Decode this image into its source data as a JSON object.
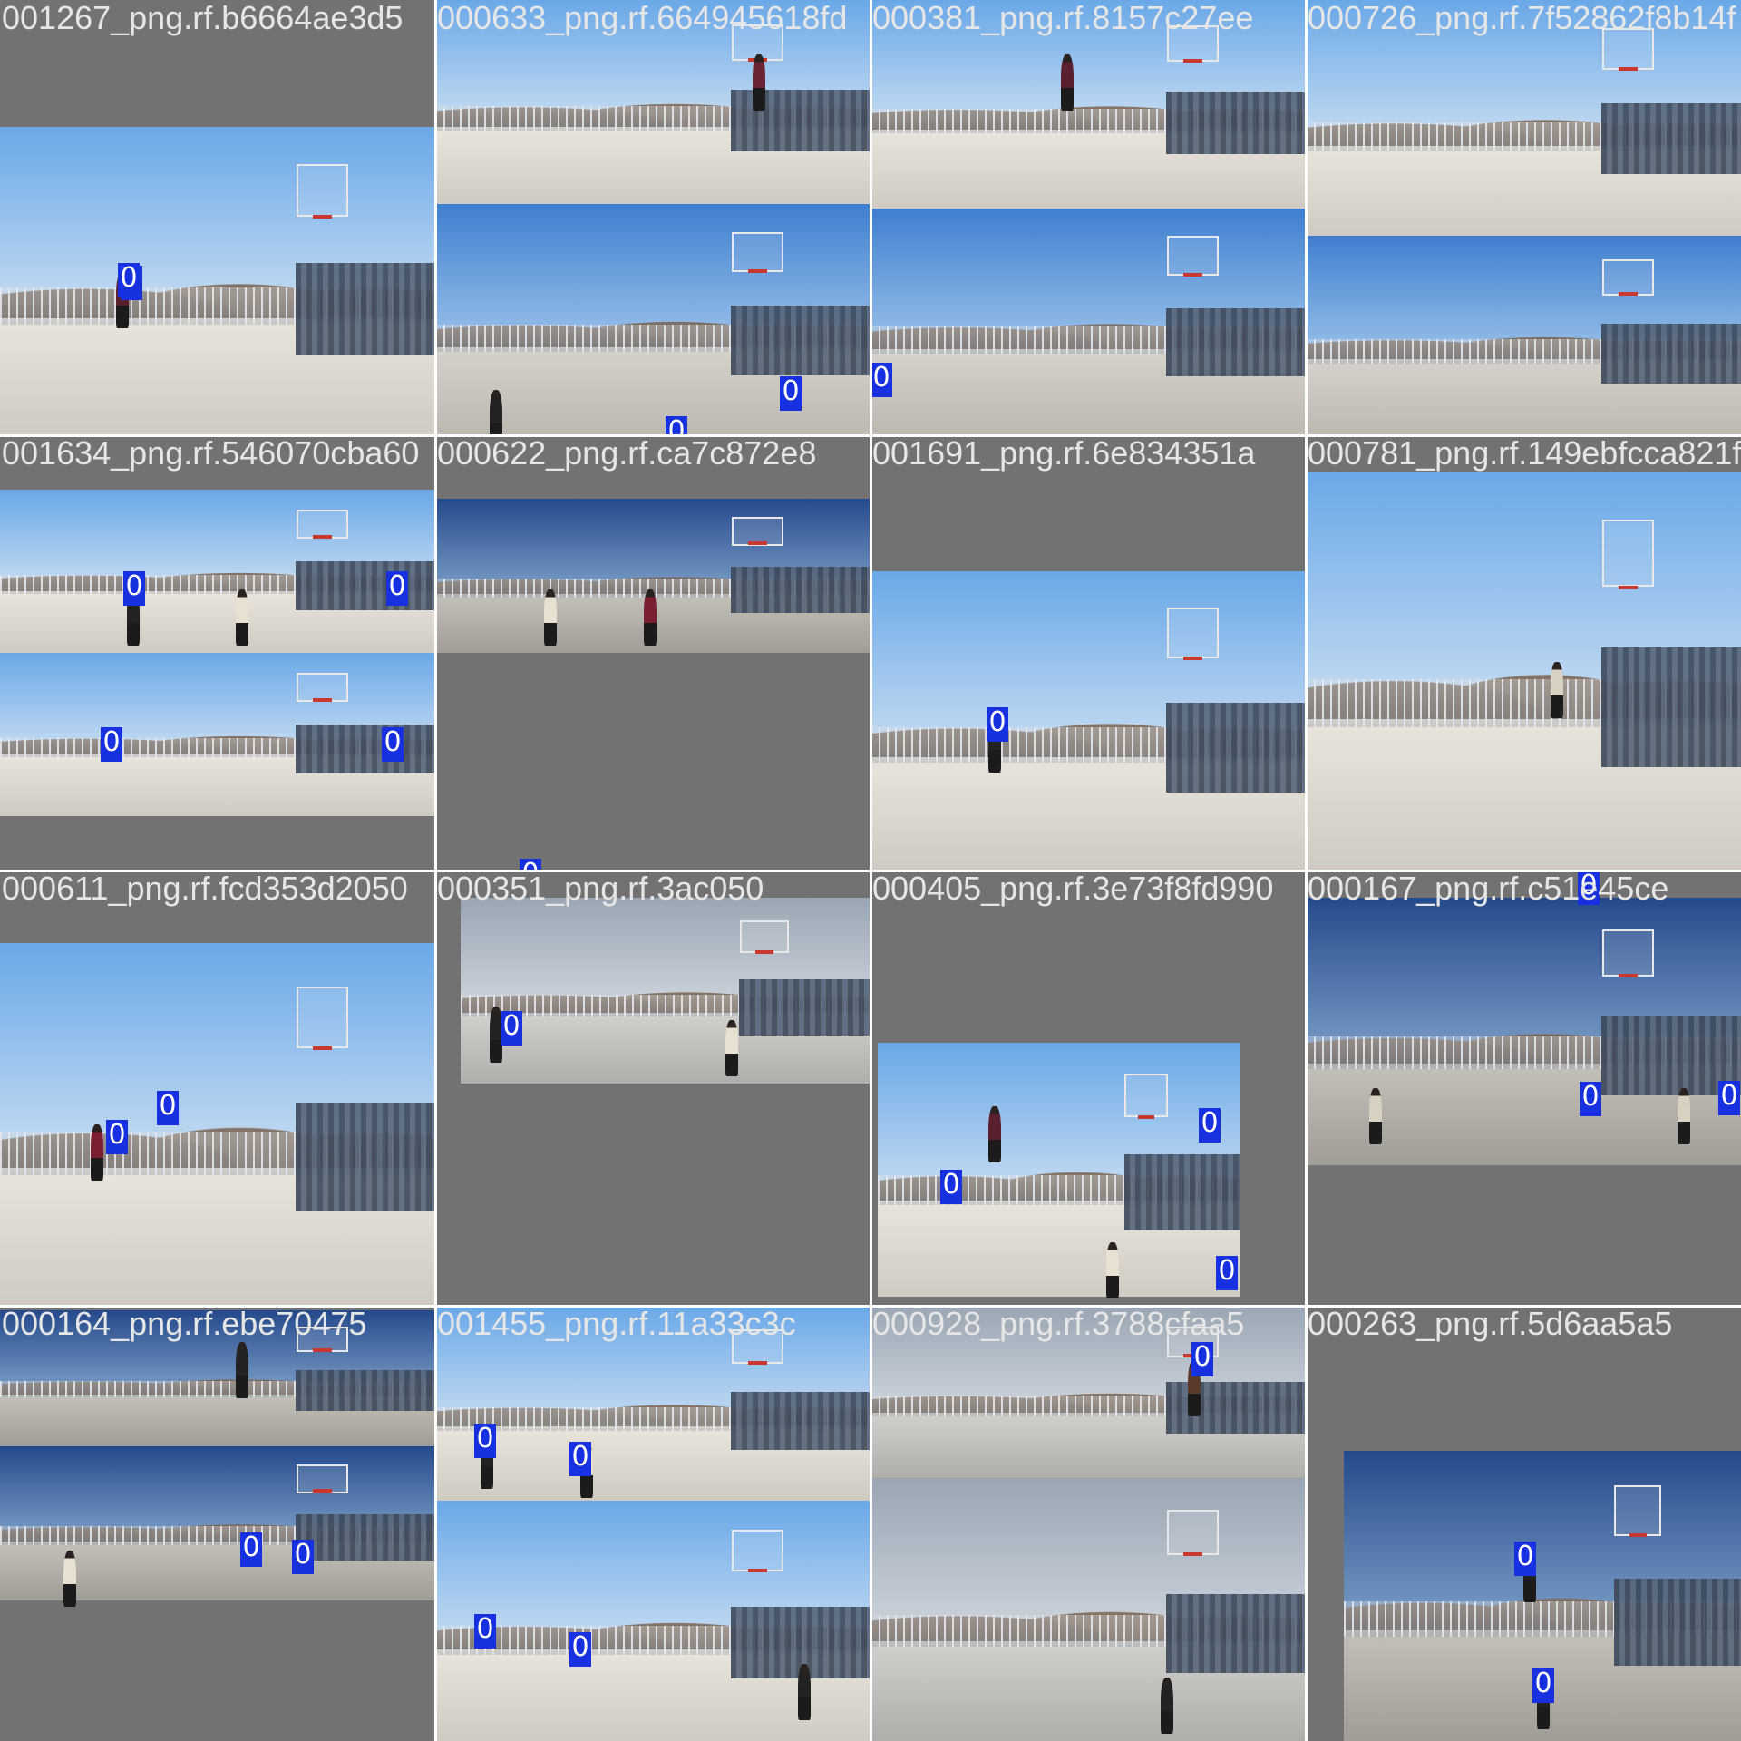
{
  "mosaic": {
    "tiles": [
      {
        "label": "001267_png.rf.b6664ae3d5",
        "class_id": "0"
      },
      {
        "label": "000633_png.rf.664945618fd",
        "class_id": "0"
      },
      {
        "label": "000381_png.rf.8157c27ee",
        "class_id": "0"
      },
      {
        "label": "000726_png.rf.7f52862f8b14f",
        "class_id": "0"
      },
      {
        "label": "001634_png.rf.546070cba60",
        "class_id": "0"
      },
      {
        "label": "000622_png.rf.ca7c872e8",
        "class_id": "0"
      },
      {
        "label": "001691_png.rf.6e834351a",
        "class_id": "0"
      },
      {
        "label": "000781_png.rf.149ebfcca821f",
        "class_id": "0"
      },
      {
        "label": "000611_png.rf.fcd353d2050",
        "class_id": "0"
      },
      {
        "label": "000351_png.rf.3ac050",
        "class_id": "0"
      },
      {
        "label": "000405_png.rf.3e73f8fd990",
        "class_id": "0"
      },
      {
        "label": "000167_png.rf.c51e45ce",
        "class_id": "0"
      },
      {
        "label": "000164_png.rf.ebe70475",
        "class_id": "0"
      },
      {
        "label": "001455_png.rf.11a33c3c",
        "class_id": "0"
      },
      {
        "label": "000928_png.rf.3788cfaa5",
        "class_id": "0"
      },
      {
        "label": "000263_png.rf.5d6aa5a5",
        "class_id": "0"
      }
    ]
  },
  "colors": {
    "box": "#1730e0",
    "pad": "#727272",
    "sky": "#7fb4e8",
    "court": "#d9d4cc"
  }
}
